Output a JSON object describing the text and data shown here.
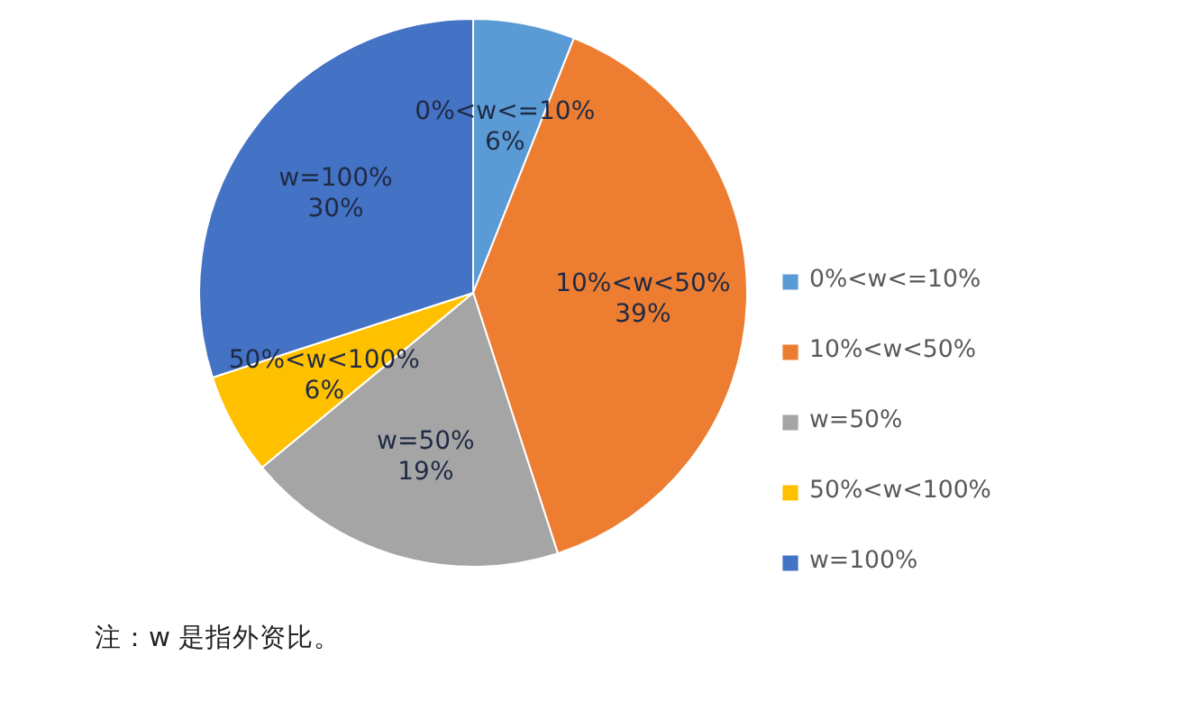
{
  "chart_data": {
    "type": "pie",
    "categories": [
      "0%<w<=10%",
      "10%<w<50%",
      "w=50%",
      "50%<w<100%",
      "w=100%"
    ],
    "values": [
      6,
      39,
      19,
      6,
      30
    ],
    "colors": [
      "#5b9bd5",
      "#ed7d31",
      "#a5a5a5",
      "#ffc000",
      "#4472c4"
    ],
    "value_labels": [
      "6%",
      "39%",
      "19%",
      "6%",
      "30%"
    ],
    "legend": "right",
    "annotations": [
      "注：w 是指外资比。"
    ]
  }
}
